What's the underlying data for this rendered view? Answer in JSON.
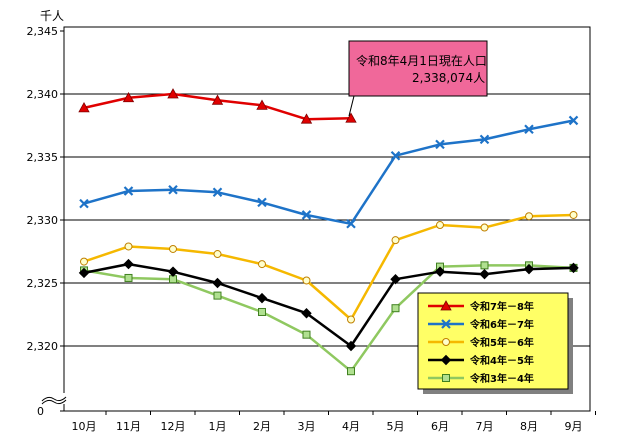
{
  "chart_data": {
    "type": "line",
    "ylabel": "千人",
    "ylim": [
      2315,
      2345
    ],
    "y_ticks": [
      "2,320",
      "2,325",
      "2,330",
      "2,335",
      "2,340",
      "2,345"
    ],
    "y_tick_values": [
      2320,
      2325,
      2330,
      2335,
      2340,
      2345
    ],
    "y_zero_label": "0",
    "categories": [
      "10月",
      "11月",
      "12月",
      "1月",
      "2月",
      "3月",
      "4月",
      "5月",
      "6月",
      "7月",
      "8月",
      "9月"
    ],
    "series": [
      {
        "name": "令和7年－8年",
        "color": "#e00000",
        "marker": "triangle",
        "values": [
          2338.9,
          2339.7,
          2340.0,
          2339.5,
          2339.1,
          2338.0,
          2338.074,
          null,
          null,
          null,
          null,
          null
        ]
      },
      {
        "name": "令和6年－7年",
        "color": "#1e73c8",
        "marker": "x",
        "values": [
          2331.3,
          2332.3,
          2332.4,
          2332.2,
          2331.4,
          2330.4,
          2329.7,
          2335.1,
          2336.0,
          2336.4,
          2337.2,
          2337.9
        ]
      },
      {
        "name": "令和5年－6年",
        "color": "#f5b800",
        "marker": "circle",
        "values": [
          2326.7,
          2327.9,
          2327.7,
          2327.3,
          2326.5,
          2325.2,
          2322.1,
          2328.4,
          2329.6,
          2329.4,
          2330.3,
          2330.4
        ]
      },
      {
        "name": "令和4年－5年",
        "color": "#000000",
        "marker": "diamond",
        "values": [
          2325.8,
          2326.5,
          2325.9,
          2325.0,
          2323.8,
          2322.6,
          2320.0,
          2325.3,
          2325.9,
          2325.7,
          2326.1,
          2326.2
        ]
      },
      {
        "name": "令和3年－4年",
        "color": "#8fc860",
        "marker": "square",
        "values": [
          2326.0,
          2325.4,
          2325.3,
          2324.0,
          2322.7,
          2320.9,
          2318.0,
          2323.0,
          2326.3,
          2326.4,
          2326.4,
          2326.2
        ]
      }
    ],
    "annotation": {
      "line1": "令和8年4月1日現在人口",
      "line2": "2,338,074人"
    },
    "legend_position": "bottom-right"
  }
}
